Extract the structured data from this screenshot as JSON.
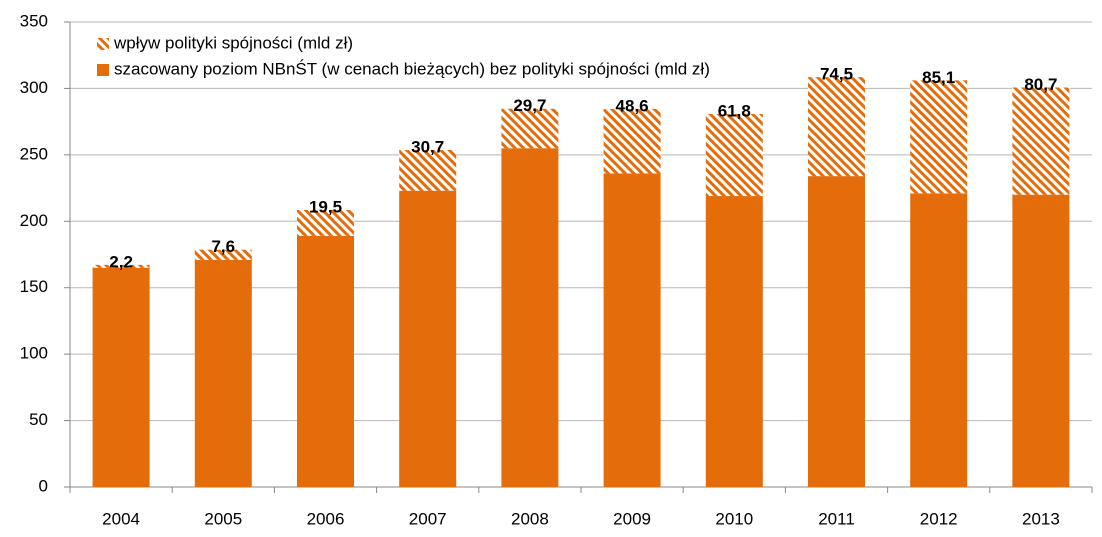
{
  "chart_data": {
    "type": "stacked_bar",
    "categories": [
      "2004",
      "2005",
      "2006",
      "2007",
      "2008",
      "2009",
      "2010",
      "2011",
      "2012",
      "2013"
    ],
    "series": [
      {
        "name": "wpływ polityki spójności (mld zł)",
        "color": "#e46c0a",
        "pattern": "hatch",
        "values": [
          2.2,
          7.6,
          19.5,
          30.7,
          29.7,
          48.6,
          61.8,
          74.5,
          85.1,
          80.7
        ],
        "value_labels": [
          "2,2",
          "7,6",
          "19,5",
          "30,7",
          "29,7",
          "48,6",
          "61,8",
          "74,5",
          "85,1",
          "80,7"
        ]
      },
      {
        "name": "szacowany poziom NBnŚT (w cenach bieżących) bez polityki spójności (mld zł)",
        "color": "#e46c0a",
        "pattern": "solid",
        "values": [
          165,
          171,
          189,
          223,
          255,
          236,
          219,
          234,
          221,
          220
        ]
      }
    ],
    "ylim": [
      0,
      350
    ],
    "yticks": [
      0,
      50,
      100,
      150,
      200,
      250,
      300,
      350
    ],
    "grid": true,
    "legend": "top-left"
  }
}
